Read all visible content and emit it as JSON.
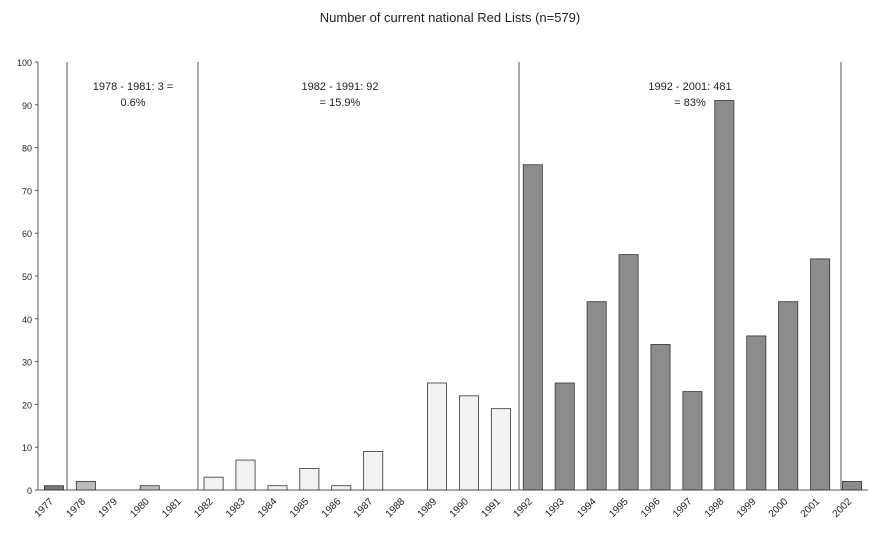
{
  "chart_data": {
    "type": "bar",
    "title": "Number of current national Red Lists (n=579)",
    "categories": [
      "1977",
      "1978",
      "1979",
      "1980",
      "1981",
      "1982",
      "1983",
      "1984",
      "1985",
      "1986",
      "1987",
      "1988",
      "1989",
      "1990",
      "1991",
      "1992",
      "1993",
      "1994",
      "1995",
      "1996",
      "1997",
      "1998",
      "1999",
      "2000",
      "2001",
      "2002"
    ],
    "values": [
      1,
      2,
      0,
      1,
      0,
      3,
      7,
      1,
      5,
      1,
      9,
      0,
      25,
      22,
      19,
      76,
      25,
      44,
      55,
      34,
      23,
      91,
      36,
      44,
      54,
      2
    ],
    "colors": [
      "#777777",
      "#bbbbbb",
      "#bbbbbb",
      "#bbbbbb",
      "#bbbbbb",
      "#f2f2f2",
      "#f2f2f2",
      "#f2f2f2",
      "#f2f2f2",
      "#f2f2f2",
      "#f2f2f2",
      "#f2f2f2",
      "#f2f2f2",
      "#f2f2f2",
      "#f2f2f2",
      "#8c8c8c",
      "#8c8c8c",
      "#8c8c8c",
      "#8c8c8c",
      "#8c8c8c",
      "#8c8c8c",
      "#8c8c8c",
      "#8c8c8c",
      "#8c8c8c",
      "#8c8c8c",
      "#8c8c8c"
    ],
    "annotations": [
      {
        "line1": "1978 - 1981: 3 =",
        "line2": "0.6%"
      },
      {
        "line1": "1982 - 1991: 92",
        "line2": "= 15.9%"
      },
      {
        "line1": "1992 - 2001: 481",
        "line2": "= 83%"
      }
    ],
    "ylim": [
      0,
      100
    ],
    "yticks": [
      0,
      10,
      20,
      30,
      40,
      50,
      60,
      70,
      80,
      90,
      100
    ],
    "grid": false
  }
}
